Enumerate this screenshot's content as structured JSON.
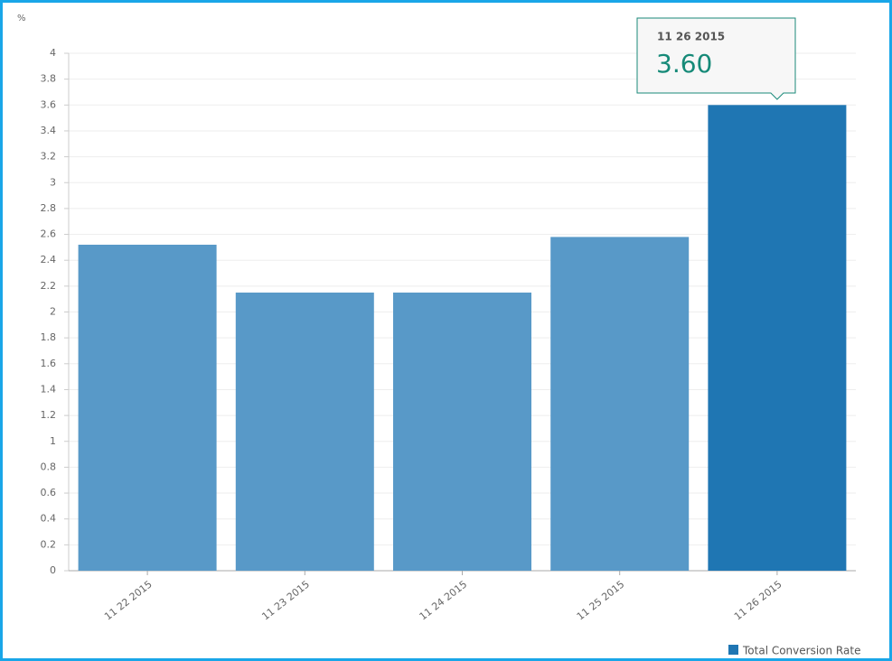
{
  "chart_data": {
    "type": "bar",
    "y_label": "%",
    "categories": [
      "11 22 2015",
      "11 23 2015",
      "11 24 2015",
      "11 25 2015",
      "11 26 2015"
    ],
    "series": [
      {
        "name": "Total Conversion Rate",
        "color": "#5899c8",
        "values": [
          2.52,
          2.15,
          2.15,
          2.58,
          3.6
        ]
      }
    ],
    "highlight_color": "#1f76b3",
    "ylim": [
      0,
      4
    ],
    "yticks": [
      0,
      0.2,
      0.4,
      0.6,
      0.8,
      1,
      1.2,
      1.4,
      1.6,
      1.8,
      2,
      2.2,
      2.4,
      2.6,
      2.8,
      3,
      3.2,
      3.4,
      3.6,
      3.8,
      4
    ],
    "grid": true,
    "legend": "bottom-right",
    "tooltip": {
      "index": 4,
      "title": "11 26 2015",
      "value_label": "3.60"
    }
  }
}
